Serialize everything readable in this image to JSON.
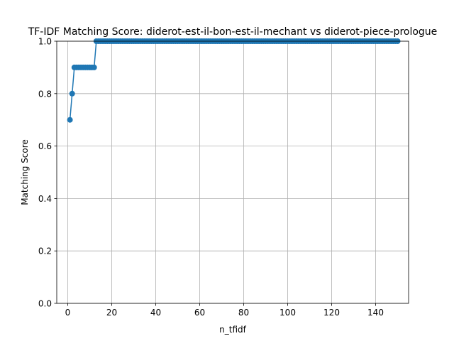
{
  "chart_data": {
    "type": "line",
    "title": "TF-IDF Matching Score: diderot-est-il-bon-est-il-mechant vs diderot-piece-prologue",
    "xlabel": "n_tfidf",
    "ylabel": "Matching Score",
    "xlim": [
      -5,
      155
    ],
    "ylim": [
      0,
      1
    ],
    "xticks": [
      0,
      20,
      40,
      60,
      80,
      100,
      120,
      140
    ],
    "yticks": [
      0.0,
      0.2,
      0.4,
      0.6,
      0.8,
      1.0
    ],
    "xtick_labels": [
      "0",
      "20",
      "40",
      "60",
      "80",
      "100",
      "120",
      "140"
    ],
    "ytick_labels": [
      "0.0",
      "0.2",
      "0.4",
      "0.6",
      "0.8",
      "1.0"
    ],
    "grid": true,
    "series": [
      {
        "color": "#1f77b4",
        "marker": "circle",
        "x_start": 1,
        "x_end": 150,
        "values": [
          0.7,
          0.8,
          0.9,
          0.9,
          0.9,
          0.9,
          0.9,
          0.9,
          0.9,
          0.9,
          0.9,
          0.9,
          1.0
        ]
      }
    ]
  }
}
